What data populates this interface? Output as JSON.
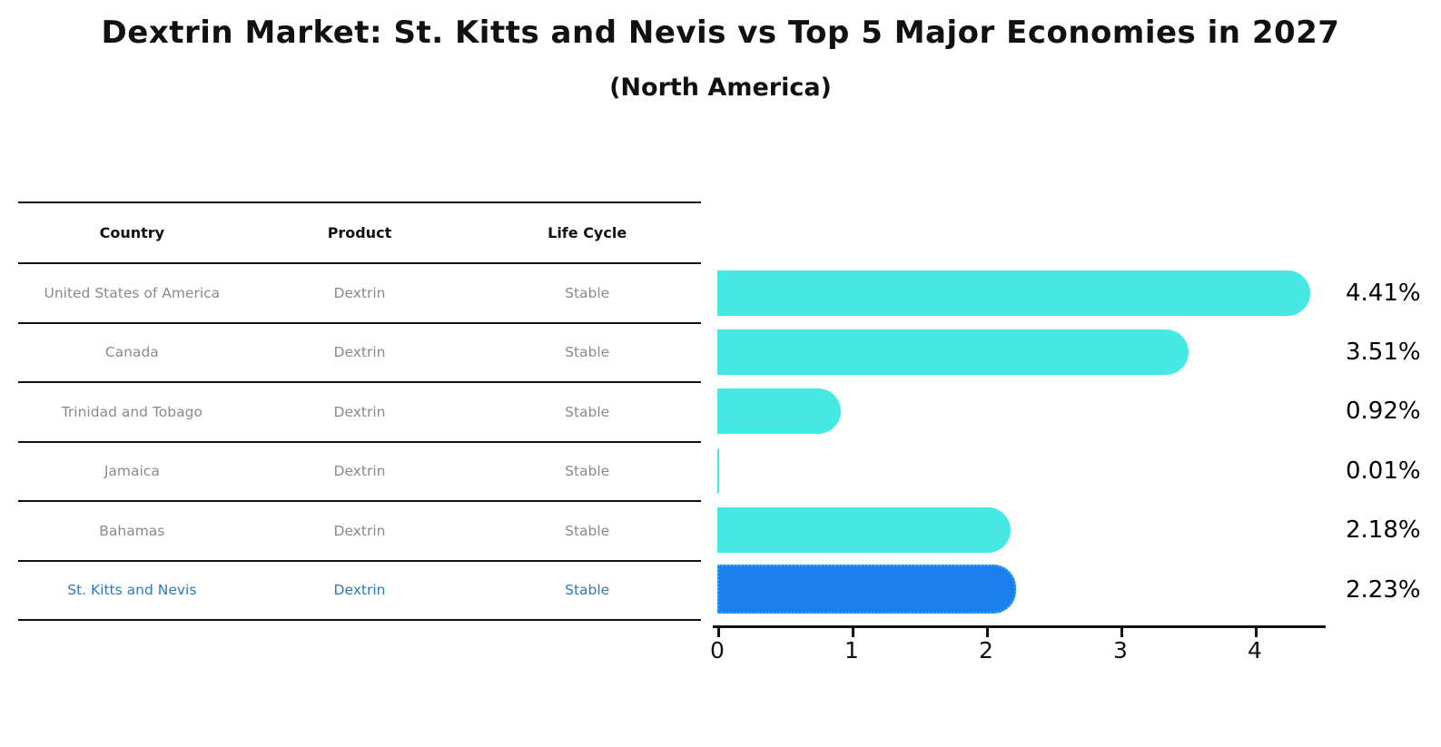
{
  "header": {
    "title": "Dextrin Market: St. Kitts and Nevis vs Top 5 Major Economies in 2027",
    "subtitle": "(North America)"
  },
  "table": {
    "columns": [
      "Country",
      "Product",
      "Life Cycle"
    ],
    "rows": [
      {
        "country": "United States of America",
        "product": "Dextrin",
        "life_cycle": "Stable",
        "highlight": false
      },
      {
        "country": "Canada",
        "product": "Dextrin",
        "life_cycle": "Stable",
        "highlight": false
      },
      {
        "country": "Trinidad and Tobago",
        "product": "Dextrin",
        "life_cycle": "Stable",
        "highlight": false
      },
      {
        "country": "Jamaica",
        "product": "Dextrin",
        "life_cycle": "Stable",
        "highlight": false
      },
      {
        "country": "Bahamas",
        "product": "Dextrin",
        "life_cycle": "Stable",
        "highlight": false
      },
      {
        "country": "St. Kitts and Nevis",
        "product": "Dextrin",
        "life_cycle": "Stable",
        "highlight": true
      }
    ]
  },
  "chart_data": {
    "type": "bar",
    "orientation": "horizontal",
    "title": "Dextrin Market: St. Kitts and Nevis vs Top 5 Major Economies in 2027 (North America)",
    "categories": [
      "United States of America",
      "Canada",
      "Trinidad and Tobago",
      "Jamaica",
      "Bahamas",
      "St. Kitts and Nevis"
    ],
    "values": [
      4.41,
      3.51,
      0.92,
      0.01,
      2.18,
      2.23
    ],
    "value_labels": [
      "4.41%",
      "3.51%",
      "0.92%",
      "0.01%",
      "2.18%",
      "2.23%"
    ],
    "xticks": [
      "0",
      "1",
      "2",
      "3",
      "4"
    ],
    "xlim": [
      0,
      4.55
    ],
    "grid": false,
    "legend": "none",
    "highlight_index": 5,
    "colors": {
      "bar_default": "#46e8e4",
      "bar_highlight": "#1b80ee",
      "bar_highlight_border": "#35b0f0",
      "value_label": "#000000",
      "table_row_text": "#8a8a8a",
      "table_highlight_text": "#2e78c2"
    }
  }
}
